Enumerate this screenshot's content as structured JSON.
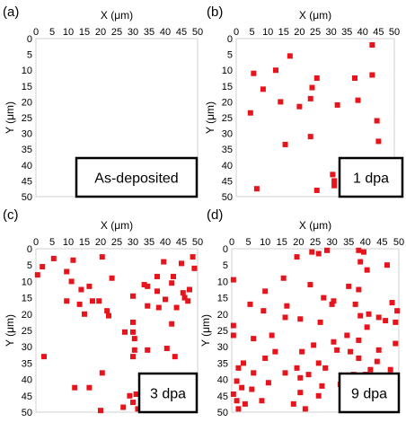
{
  "chart_data": [
    {
      "type": "scatter",
      "panel_label": "(a)",
      "xlabel": "X (μm)",
      "ylabel": "Y (μm)",
      "xlim": [
        0,
        50
      ],
      "ylim": [
        0,
        50
      ],
      "y_inverted": true,
      "ticks": [
        0,
        5,
        10,
        15,
        20,
        25,
        30,
        35,
        40,
        45,
        50
      ],
      "grid": false,
      "legend": "none",
      "annotation": "As-deposited",
      "points": []
    },
    {
      "type": "scatter",
      "panel_label": "(b)",
      "xlabel": "X (μm)",
      "ylabel": "Y (μm)",
      "xlim": [
        0,
        50
      ],
      "ylim": [
        0,
        50
      ],
      "y_inverted": true,
      "ticks": [
        0,
        5,
        10,
        15,
        20,
        25,
        30,
        35,
        40,
        45,
        50
      ],
      "grid": false,
      "legend": "none",
      "annotation": "1 dpa",
      "points": [
        [
          43.0,
          2.0
        ],
        [
          17.0,
          5.5
        ],
        [
          5.5,
          11.0
        ],
        [
          12.5,
          10.0
        ],
        [
          8.5,
          16.0
        ],
        [
          14.0,
          20.0
        ],
        [
          25.5,
          12.5
        ],
        [
          24.0,
          15.5
        ],
        [
          23.5,
          19.0
        ],
        [
          20.0,
          21.5
        ],
        [
          32.0,
          21.0
        ],
        [
          37.5,
          12.5
        ],
        [
          43.0,
          11.5
        ],
        [
          38.5,
          19.5
        ],
        [
          4.5,
          23.5
        ],
        [
          44.5,
          26.0
        ],
        [
          15.5,
          33.5
        ],
        [
          23.5,
          31.0
        ],
        [
          45.0,
          32.5
        ],
        [
          30.5,
          43.0
        ],
        [
          31.0,
          45.0
        ],
        [
          31.0,
          46.5
        ],
        [
          6.5,
          47.5
        ],
        [
          25.5,
          48.0
        ]
      ]
    },
    {
      "type": "scatter",
      "panel_label": "(c)",
      "xlabel": "X (μm)",
      "ylabel": "Y (μm)",
      "xlim": [
        0,
        50
      ],
      "ylim": [
        0,
        50
      ],
      "y_inverted": true,
      "ticks": [
        0,
        5,
        10,
        15,
        20,
        25,
        30,
        35,
        40,
        45,
        50
      ],
      "grid": false,
      "legend": "none",
      "annotation": "3 dpa",
      "points": [
        [
          0.5,
          8.0
        ],
        [
          2.0,
          5.5
        ],
        [
          5.5,
          3.0
        ],
        [
          9.5,
          7.0
        ],
        [
          11.5,
          3.5
        ],
        [
          11.0,
          10.0
        ],
        [
          9.5,
          16.0
        ],
        [
          14.0,
          12.5
        ],
        [
          13.5,
          17.0
        ],
        [
          15.0,
          20.0
        ],
        [
          17.5,
          16.0
        ],
        [
          16.5,
          11.5
        ],
        [
          19.5,
          16.0
        ],
        [
          20.5,
          2.5
        ],
        [
          22.0,
          19.0
        ],
        [
          23.5,
          9.0
        ],
        [
          22.5,
          20.5
        ],
        [
          30.0,
          14.5
        ],
        [
          30.0,
          22.5
        ],
        [
          33.5,
          11.0
        ],
        [
          34.5,
          11.5
        ],
        [
          34.5,
          17.5
        ],
        [
          37.5,
          13.0
        ],
        [
          38.0,
          18.0
        ],
        [
          37.5,
          8.5
        ],
        [
          39.5,
          4.0
        ],
        [
          40.0,
          15.5
        ],
        [
          42.5,
          8.5
        ],
        [
          42.0,
          10.5
        ],
        [
          43.5,
          18.0
        ],
        [
          45.0,
          4.5
        ],
        [
          45.5,
          13.5
        ],
        [
          46.0,
          15.0
        ],
        [
          47.0,
          16.0
        ],
        [
          47.5,
          12.5
        ],
        [
          48.5,
          2.5
        ],
        [
          49.0,
          6.0
        ],
        [
          42.0,
          23.0
        ],
        [
          27.5,
          25.5
        ],
        [
          30.0,
          25.5
        ],
        [
          30.5,
          27.5
        ],
        [
          30.5,
          31.0
        ],
        [
          34.5,
          31.0
        ],
        [
          30.0,
          33.0
        ],
        [
          40.5,
          30.5
        ],
        [
          43.0,
          33.0
        ],
        [
          2.5,
          33.0
        ],
        [
          20.5,
          38.0
        ],
        [
          12.0,
          42.5
        ],
        [
          16.5,
          42.5
        ],
        [
          29.0,
          45.0
        ],
        [
          31.0,
          44.5
        ],
        [
          30.0,
          47.0
        ],
        [
          27.0,
          48.5
        ],
        [
          31.5,
          49.0
        ],
        [
          20.0,
          49.5
        ]
      ]
    },
    {
      "type": "scatter",
      "panel_label": "(d)",
      "xlabel": "X (μm)",
      "ylabel": "Y (μm)",
      "xlim": [
        0,
        50
      ],
      "ylim": [
        0,
        50
      ],
      "y_inverted": true,
      "ticks": [
        0,
        5,
        10,
        15,
        20,
        25,
        30,
        35,
        40,
        45,
        50
      ],
      "grid": false,
      "legend": "none",
      "annotation": "9 dpa",
      "points": [
        [
          24.0,
          1.0
        ],
        [
          26.0,
          1.5
        ],
        [
          28.5,
          0.5
        ],
        [
          19.5,
          2.5
        ],
        [
          38.0,
          0.5
        ],
        [
          39.5,
          1.0
        ],
        [
          38.5,
          4.0
        ],
        [
          40.5,
          6.5
        ],
        [
          46.5,
          5.0
        ],
        [
          0.5,
          9.5
        ],
        [
          15.5,
          9.0
        ],
        [
          10.0,
          13.0
        ],
        [
          23.5,
          11.0
        ],
        [
          35.0,
          11.5
        ],
        [
          38.0,
          12.5
        ],
        [
          5.5,
          17.0
        ],
        [
          9.5,
          19.0
        ],
        [
          16.5,
          17.5
        ],
        [
          27.5,
          15.0
        ],
        [
          30.5,
          16.0
        ],
        [
          30.0,
          17.0
        ],
        [
          37.0,
          17.0
        ],
        [
          48.0,
          16.5
        ],
        [
          49.5,
          19.0
        ],
        [
          49.0,
          22.5
        ],
        [
          44.0,
          21.0
        ],
        [
          38.5,
          20.5
        ],
        [
          41.0,
          20.0
        ],
        [
          46.0,
          22.0
        ],
        [
          16.0,
          21.0
        ],
        [
          20.5,
          21.5
        ],
        [
          26.5,
          22.5
        ],
        [
          0.5,
          23.5
        ],
        [
          0.5,
          26.5
        ],
        [
          40.5,
          24.0
        ],
        [
          12.0,
          26.5
        ],
        [
          6.5,
          27.5
        ],
        [
          30.5,
          28.5
        ],
        [
          24.5,
          29.5
        ],
        [
          34.5,
          26.5
        ],
        [
          38.0,
          28.0
        ],
        [
          49.0,
          29.0
        ],
        [
          13.0,
          31.5
        ],
        [
          21.0,
          31.5
        ],
        [
          31.5,
          31.0
        ],
        [
          35.5,
          31.5
        ],
        [
          44.0,
          31.0
        ],
        [
          43.5,
          34.5
        ],
        [
          3.5,
          35.0
        ],
        [
          10.0,
          33.5
        ],
        [
          19.5,
          36.5
        ],
        [
          26.0,
          35.0
        ],
        [
          28.0,
          36.5
        ],
        [
          38.0,
          33.5
        ],
        [
          41.5,
          37.0
        ],
        [
          2.0,
          36.5
        ],
        [
          6.5,
          38.0
        ],
        [
          16.0,
          38.0
        ],
        [
          20.5,
          39.5
        ],
        [
          23.0,
          38.5
        ],
        [
          36.5,
          38.5
        ],
        [
          40.0,
          38.5
        ],
        [
          47.5,
          37.0
        ],
        [
          1.5,
          40.5
        ],
        [
          3.0,
          42.5
        ],
        [
          11.0,
          41.0
        ],
        [
          27.0,
          42.0
        ],
        [
          32.5,
          41.5
        ],
        [
          0.5,
          44.5
        ],
        [
          6.0,
          43.0
        ],
        [
          26.0,
          45.0
        ],
        [
          20.5,
          44.0
        ],
        [
          1.5,
          46.5
        ],
        [
          4.0,
          47.5
        ],
        [
          9.0,
          46.5
        ],
        [
          18.5,
          47.5
        ],
        [
          33.5,
          47.0
        ],
        [
          2.0,
          49.0
        ],
        [
          22.0,
          49.0
        ]
      ]
    }
  ]
}
